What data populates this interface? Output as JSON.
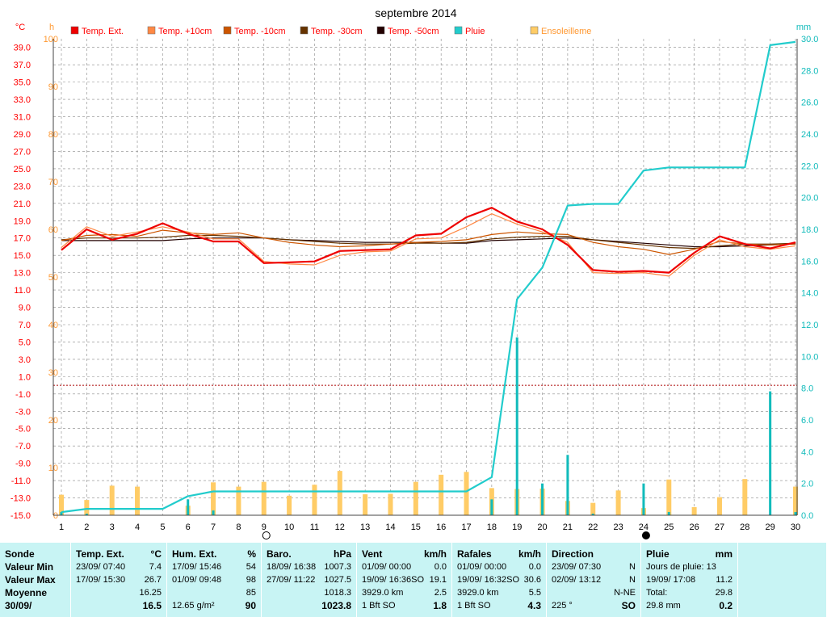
{
  "chart_data": {
    "type": "line",
    "title": "septembre 2014",
    "axis_units": {
      "temp": "°C",
      "sun": "h",
      "rain": "mm"
    },
    "temp_axis": {
      "min": -15.0,
      "max": 40.0,
      "step": 2.0,
      "ticks": [
        "39.0",
        "37.0",
        "35.0",
        "33.0",
        "31.0",
        "29.0",
        "27.0",
        "25.0",
        "23.0",
        "21.0",
        "19.0",
        "17.0",
        "15.0",
        "13.0",
        "11.0",
        "9.0",
        "7.0",
        "5.0",
        "3.0",
        "1.0",
        "-1.0",
        "-3.0",
        "-5.0",
        "-7.0",
        "-9.0",
        "-11.0",
        "-13.0",
        "-15.0"
      ]
    },
    "sun_axis": {
      "min": 0,
      "max": 100,
      "ticks": [
        "100",
        "90",
        "80",
        "70",
        "60",
        "50",
        "40",
        "30",
        "20",
        "10",
        "0"
      ]
    },
    "rain_axis": {
      "min": 0.0,
      "max": 30.0,
      "ticks": [
        "30.0",
        "28.0",
        "26.0",
        "24.0",
        "22.0",
        "20.0",
        "18.0",
        "16.0",
        "14.0",
        "12.0",
        "10.0",
        "8.0",
        "6.0",
        "4.0",
        "2.0",
        "0.0"
      ]
    },
    "x": [
      "1",
      "2",
      "3",
      "4",
      "5",
      "6",
      "7",
      "8",
      "9",
      "10",
      "11",
      "12",
      "13",
      "14",
      "15",
      "16",
      "17",
      "18",
      "19",
      "20",
      "21",
      "22",
      "23",
      "24",
      "25",
      "26",
      "27",
      "28",
      "29",
      "30"
    ],
    "series": [
      {
        "name": "Temp. Ext.",
        "color": "#ee0000",
        "axis": "temp",
        "values": [
          15.6,
          18.0,
          16.8,
          17.5,
          18.7,
          17.5,
          16.6,
          16.6,
          14.1,
          14.2,
          14.3,
          15.5,
          15.6,
          15.7,
          17.3,
          17.5,
          19.4,
          20.5,
          18.9,
          18.0,
          16.2,
          13.3,
          13.1,
          13.2,
          13.0,
          15.3,
          17.2,
          16.3,
          15.8,
          16.5
        ]
      },
      {
        "name": "Temp. +10cm",
        "color": "#ff8844",
        "axis": "temp",
        "values": [
          15.9,
          18.3,
          17.2,
          17.7,
          18.3,
          17.7,
          16.9,
          16.9,
          14.3,
          14.0,
          13.9,
          15.0,
          15.4,
          15.5,
          16.9,
          17.0,
          18.3,
          19.8,
          18.6,
          17.7,
          16.5,
          13.0,
          12.9,
          13.0,
          12.6,
          15.0,
          16.8,
          16.0,
          15.7,
          16.1
        ]
      },
      {
        "name": "Temp. -10cm",
        "color": "#cc5500",
        "axis": "temp",
        "values": [
          16.7,
          17.3,
          17.4,
          17.2,
          17.9,
          17.6,
          17.4,
          17.6,
          17.0,
          16.5,
          16.2,
          16.0,
          16.1,
          16.3,
          16.5,
          16.6,
          16.8,
          17.4,
          17.7,
          17.5,
          17.4,
          16.5,
          16.0,
          15.7,
          15.1,
          15.7,
          16.6,
          16.3,
          16.2,
          16.3
        ]
      },
      {
        "name": "Temp. -30cm",
        "color": "#663300",
        "axis": "temp",
        "values": [
          16.8,
          17.0,
          17.0,
          17.0,
          17.1,
          17.3,
          17.3,
          17.2,
          17.0,
          16.8,
          16.6,
          16.4,
          16.3,
          16.3,
          16.4,
          16.4,
          16.5,
          16.9,
          17.1,
          17.2,
          17.2,
          16.8,
          16.5,
          16.2,
          15.9,
          15.8,
          16.1,
          16.3,
          16.3,
          16.4
        ]
      },
      {
        "name": "Temp. -50cm",
        "color": "#220000",
        "axis": "temp",
        "values": [
          16.7,
          16.7,
          16.7,
          16.7,
          16.7,
          16.9,
          17.0,
          17.0,
          17.0,
          16.8,
          16.7,
          16.6,
          16.5,
          16.5,
          16.5,
          16.4,
          16.4,
          16.7,
          16.8,
          16.9,
          17.0,
          16.8,
          16.6,
          16.4,
          16.2,
          16.0,
          16.0,
          16.1,
          16.2,
          16.3
        ]
      },
      {
        "name": "Pluie",
        "color": "#22cccc",
        "axis": "rain",
        "values": [
          0.2,
          0.4,
          0.4,
          0.4,
          0.4,
          1.2,
          1.5,
          1.5,
          1.5,
          1.5,
          1.5,
          1.5,
          1.5,
          1.5,
          1.5,
          1.5,
          1.5,
          2.4,
          13.6,
          15.6,
          19.5,
          19.6,
          19.6,
          21.7,
          21.9,
          21.9,
          21.9,
          21.9,
          29.6,
          29.8
        ]
      },
      {
        "name": "Ensoleilleme",
        "color": "#ffcc66",
        "axis": "sun",
        "kind": "bar",
        "values": [
          4.3,
          3.2,
          6.2,
          6.0,
          0,
          2.0,
          6.9,
          6.0,
          7.0,
          4.1,
          6.4,
          9.3,
          4.4,
          4.5,
          7.0,
          8.5,
          9.1,
          5.7,
          5.5,
          5.6,
          3.0,
          2.6,
          5.2,
          1.5,
          7.5,
          1.7,
          3.8,
          7.6,
          0,
          6.0
        ]
      }
    ],
    "daily_rain": [
      0.2,
      0.1,
      0,
      0,
      0,
      1.0,
      0.3,
      0,
      0,
      0,
      0,
      0,
      0,
      0,
      0,
      0,
      0,
      1.0,
      11.2,
      2.0,
      3.8,
      0.1,
      0,
      2.0,
      0.2,
      0,
      0,
      0,
      7.8,
      0.2
    ],
    "freeze_line": 0.0,
    "moon_markers": [
      {
        "day": 9,
        "phase": "full"
      },
      {
        "day": 24,
        "phase": "new"
      }
    ],
    "grid": true,
    "legend_position": "top"
  },
  "colors": {
    "temp_axis": "#ff0000",
    "sun_axis": "#ff9933",
    "rain_axis": "#11bbbb",
    "panel": "#c8f4f4",
    "grid": "#888888"
  },
  "panel": {
    "sonde": {
      "header": "Sonde",
      "rows": [
        "Valeur Min",
        "Valeur Max",
        "Moyenne",
        "30/09/"
      ]
    },
    "temp": {
      "header": "Temp. Ext.",
      "unit": "°C",
      "rows": [
        [
          "23/09/  07:40",
          "7.4"
        ],
        [
          "17/09/  15:30",
          "26.7"
        ],
        [
          "",
          "16.25"
        ],
        [
          "",
          "16.5"
        ]
      ]
    },
    "hum": {
      "header": "Hum. Ext.",
      "unit": "%",
      "rows": [
        [
          "17/09/  15:46",
          "54"
        ],
        [
          "01/09/  09:48",
          "98"
        ],
        [
          "",
          "85"
        ],
        [
          "12.65 g/m²",
          "90"
        ]
      ]
    },
    "baro": {
      "header": "Baro.",
      "unit": "hPa",
      "rows": [
        [
          "18/09/  16:38",
          "1007.3"
        ],
        [
          "27/09/  11:22",
          "1027.5"
        ],
        [
          "",
          "1018.3"
        ],
        [
          "",
          "1023.8"
        ]
      ]
    },
    "vent": {
      "header": "Vent",
      "unit": "km/h",
      "rows": [
        [
          "01/09/  00:00",
          "0.0"
        ],
        [
          "19/09/  16:36SO",
          "19.1"
        ],
        [
          "3929.0 km",
          "2.5"
        ],
        [
          "1 Bft SO",
          "1.8"
        ]
      ]
    },
    "rafales": {
      "header": "Rafales",
      "unit": "km/h",
      "rows": [
        [
          "01/09/  00:00",
          "0.0"
        ],
        [
          "19/09/  16:32SO",
          "30.6"
        ],
        [
          "3929.0 km",
          "5.5"
        ],
        [
          "1 Bft SO",
          "4.3"
        ]
      ]
    },
    "direction": {
      "header": "Direction",
      "rows": [
        [
          "23/09/  07:30",
          "N"
        ],
        [
          "02/09/  13:12",
          "N"
        ],
        [
          "",
          "N-NE"
        ],
        [
          "225 °",
          "SO"
        ]
      ]
    },
    "pluie": {
      "header": "Pluie",
      "unit": "mm",
      "rows": [
        [
          "Jours de pluie: 13",
          ""
        ],
        [
          "19/09/  17:08",
          "11.2"
        ],
        [
          "Total:",
          "29.8"
        ],
        [
          "29.8 mm",
          "0.2"
        ]
      ]
    }
  }
}
